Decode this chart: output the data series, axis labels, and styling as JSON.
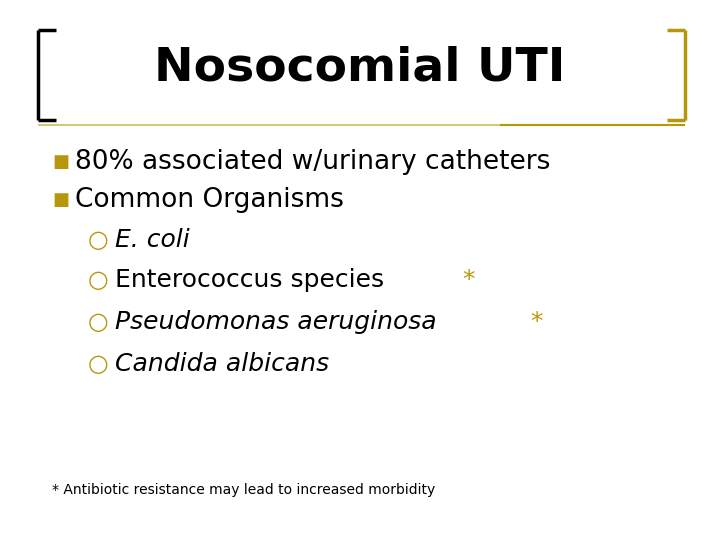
{
  "title": "Nosocomial UTI",
  "title_fontsize": 34,
  "title_color": "#000000",
  "background_color": "#ffffff",
  "bracket_left_color": "#000000",
  "bracket_right_color": "#b8960c",
  "divider_color_left": "#d4c87a",
  "divider_color_right": "#b8960c",
  "bullet_color": "#b8960c",
  "bullet1": "80% associated w/urinary catheters",
  "bullet2": "Common Organisms",
  "sub_bullets": [
    "E. coli",
    "Enterococcus species",
    "Pseudomonas aeruginosa",
    "Candida albicans"
  ],
  "sub_italic": [
    true,
    false,
    true,
    true
  ],
  "sub_star": [
    false,
    true,
    true,
    false
  ],
  "footnote": "* Antibiotic resistance may lead to increased morbidity",
  "main_fontsize": 19,
  "sub_fontsize": 18,
  "footnote_fontsize": 10
}
